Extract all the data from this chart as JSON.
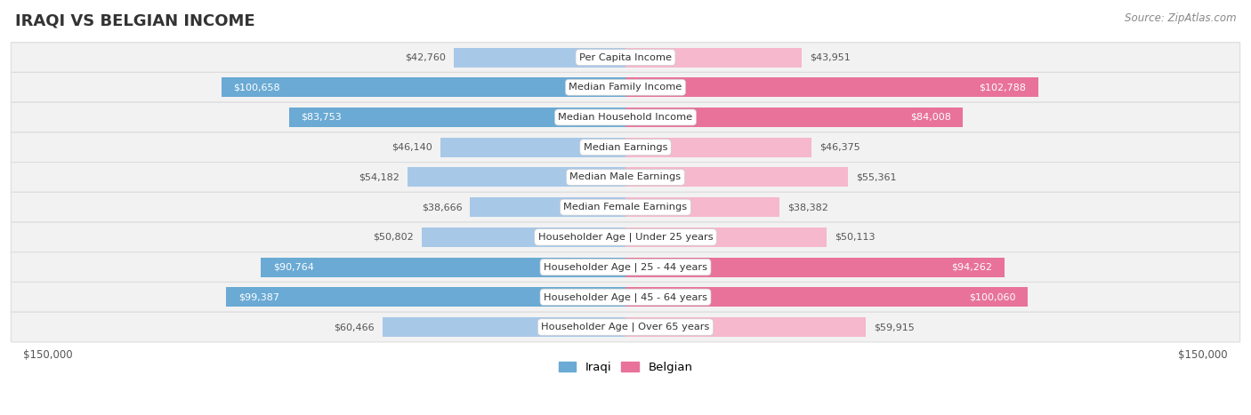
{
  "title": "IRAQI VS BELGIAN INCOME",
  "source": "Source: ZipAtlas.com",
  "categories": [
    "Per Capita Income",
    "Median Family Income",
    "Median Household Income",
    "Median Earnings",
    "Median Male Earnings",
    "Median Female Earnings",
    "Householder Age | Under 25 years",
    "Householder Age | 25 - 44 years",
    "Householder Age | 45 - 64 years",
    "Householder Age | Over 65 years"
  ],
  "iraqi_values": [
    42760,
    100658,
    83753,
    46140,
    54182,
    38666,
    50802,
    90764,
    99387,
    60466
  ],
  "belgian_values": [
    43951,
    102788,
    84008,
    46375,
    55361,
    38382,
    50113,
    94262,
    100060,
    59915
  ],
  "iraqi_labels": [
    "$42,760",
    "$100,658",
    "$83,753",
    "$46,140",
    "$54,182",
    "$38,666",
    "$50,802",
    "$90,764",
    "$99,387",
    "$60,466"
  ],
  "belgian_labels": [
    "$43,951",
    "$102,788",
    "$84,008",
    "$46,375",
    "$55,361",
    "$38,382",
    "$50,113",
    "$94,262",
    "$100,060",
    "$59,915"
  ],
  "max_value": 150000,
  "iraqi_color_light": "#a8c8e8",
  "iraqi_color_dark": "#6aaad4",
  "belgian_color_light": "#f5b8cc",
  "belgian_color_dark": "#e8729a",
  "label_color_outside": "#555555",
  "label_color_inside": "#ffffff",
  "bg_color": "#ffffff",
  "row_bg_color": "#f2f2f2",
  "row_border_color": "#dddddd",
  "threshold_inside": 65000,
  "bottom_label_left": "$150,000",
  "bottom_label_right": "$150,000",
  "legend_iraqi": "Iraqi",
  "legend_belgian": "Belgian"
}
